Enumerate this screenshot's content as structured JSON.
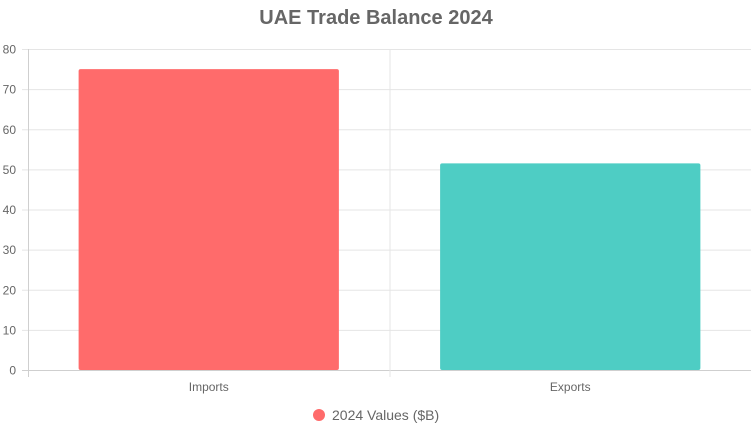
{
  "chart_data": {
    "type": "bar",
    "title": "UAE Trade Balance 2024",
    "categories": [
      "Imports",
      "Exports"
    ],
    "series": [
      {
        "name": "2024 Values ($B)",
        "values": [
          75,
          51.5
        ],
        "colors": [
          "#ff6b6b",
          "#4ecdc4"
        ]
      }
    ],
    "ylim": [
      0,
      80
    ],
    "yticks": [
      0,
      10,
      20,
      30,
      40,
      50,
      60,
      70,
      80
    ],
    "grid": true,
    "legend_position": "bottom",
    "legend_color": "#ff6b6b"
  }
}
